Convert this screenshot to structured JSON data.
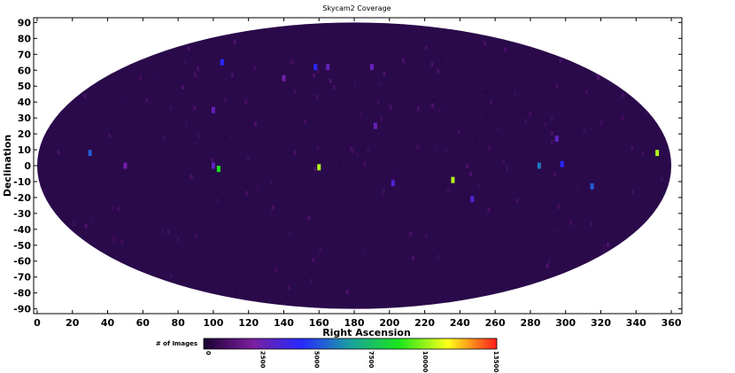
{
  "chart_data": {
    "type": "heatmap",
    "title": "Skycam2 Coverage",
    "xlabel": "Right Ascension",
    "ylabel": "Declination",
    "xlim": [
      -2,
      366
    ],
    "ylim": [
      -93,
      93
    ],
    "x_ticks": [
      0,
      20,
      40,
      60,
      80,
      100,
      120,
      140,
      160,
      180,
      200,
      220,
      240,
      260,
      280,
      300,
      320,
      340,
      360
    ],
    "y_ticks": [
      90,
      80,
      70,
      60,
      50,
      40,
      30,
      20,
      10,
      0,
      -10,
      -20,
      -30,
      -40,
      -50,
      -60,
      -70,
      -80,
      -90
    ],
    "projection": "aitoff",
    "projection_center_ra": 180,
    "background_color": "#2a0a4a",
    "colorbar": {
      "label": "# of Images",
      "range": [
        0,
        13500
      ],
      "ticks": [
        0,
        2500,
        5000,
        7500,
        10000,
        13500
      ],
      "colors": [
        "#1a0030",
        "#7a1fa0",
        "#2828ff",
        "#1aa0a0",
        "#1ae61a",
        "#ffff1a",
        "#ff1a1a"
      ]
    },
    "hotspots": [
      {
        "ra": 30,
        "dec": 8,
        "value": 5500
      },
      {
        "ra": 50,
        "dec": 0,
        "value": 2500
      },
      {
        "ra": 100,
        "dec": 0,
        "value": 3000
      },
      {
        "ra": 103,
        "dec": -2,
        "value": 9000
      },
      {
        "ra": 105,
        "dec": 65,
        "value": 4500
      },
      {
        "ra": 100,
        "dec": 35,
        "value": 2800
      },
      {
        "ra": 140,
        "dec": 55,
        "value": 2500
      },
      {
        "ra": 158,
        "dec": 62,
        "value": 4500
      },
      {
        "ra": 165,
        "dec": 62,
        "value": 2800
      },
      {
        "ra": 160,
        "dec": -1,
        "value": 10500
      },
      {
        "ra": 190,
        "dec": 62,
        "value": 2800
      },
      {
        "ra": 192,
        "dec": 25,
        "value": 2800
      },
      {
        "ra": 202,
        "dec": -11,
        "value": 3500
      },
      {
        "ra": 236,
        "dec": -9,
        "value": 10500
      },
      {
        "ra": 247,
        "dec": -21,
        "value": 3500
      },
      {
        "ra": 285,
        "dec": 0,
        "value": 6000
      },
      {
        "ra": 295,
        "dec": 17,
        "value": 3000
      },
      {
        "ra": 298,
        "dec": 1,
        "value": 4500
      },
      {
        "ra": 315,
        "dec": -13,
        "value": 5500
      },
      {
        "ra": 352,
        "dec": 8,
        "value": 10500
      }
    ]
  }
}
